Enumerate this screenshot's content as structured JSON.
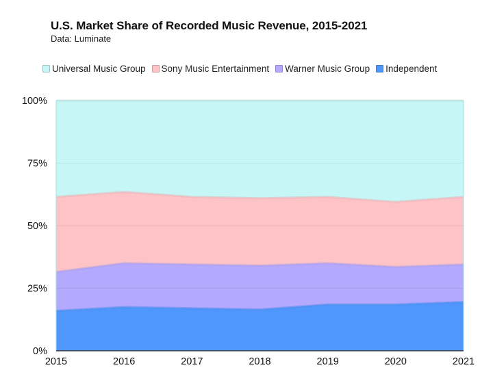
{
  "header": {
    "title": "U.S. Market Share of Recorded Music Revenue, 2015-2021",
    "subtitle": "Data: Luminate"
  },
  "chart_data": {
    "type": "area",
    "stacked": true,
    "title": "U.S. Market Share of Recorded Music Revenue, 2015-2021",
    "subtitle": "Data: Luminate",
    "xlabel": "",
    "ylabel": "",
    "x": [
      2015,
      2016,
      2017,
      2018,
      2019,
      2020,
      2021
    ],
    "x_tick_labels": [
      "2015",
      "2016",
      "2017",
      "2018",
      "2019",
      "2020",
      "2021"
    ],
    "y_tick_labels": [
      "0%",
      "25%",
      "50%",
      "75%",
      "100%"
    ],
    "y_ticks": [
      0,
      25,
      50,
      75,
      100
    ],
    "ylim": [
      0,
      100
    ],
    "grid": true,
    "legend_position": "top",
    "series": [
      {
        "name": "Independent",
        "color": "#4f97fd",
        "values": [
          16.0,
          17.5,
          17.0,
          16.5,
          18.5,
          18.5,
          19.5
        ]
      },
      {
        "name": "Warner Music Group",
        "color": "#b4a9fd",
        "values": [
          15.5,
          17.5,
          17.5,
          17.5,
          16.5,
          15.0,
          15.0
        ]
      },
      {
        "name": "Sony Music Entertainment",
        "color": "#fec3c6",
        "values": [
          30.0,
          28.5,
          27.0,
          27.0,
          26.5,
          26.0,
          27.0
        ]
      },
      {
        "name": "Universal Music Group",
        "color": "#c6f6f6",
        "values": [
          38.5,
          36.5,
          38.5,
          39.0,
          38.5,
          40.5,
          38.5
        ]
      }
    ],
    "legend_order": [
      "Universal Music Group",
      "Sony Music Entertainment",
      "Warner Music Group",
      "Independent"
    ]
  }
}
